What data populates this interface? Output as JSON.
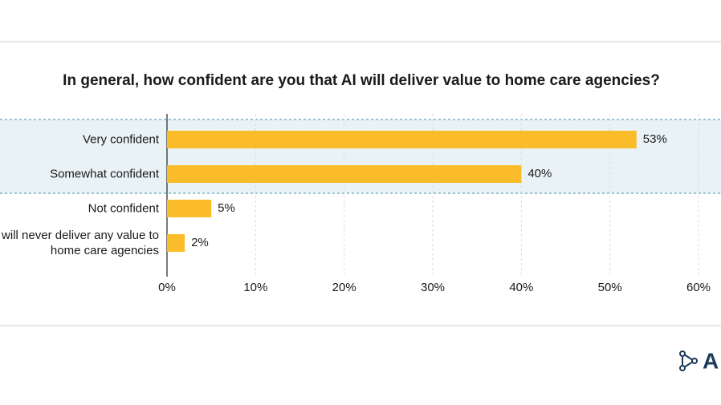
{
  "chart_data": {
    "type": "bar",
    "orientation": "horizontal",
    "title": "In general, how confident are you that AI will deliver value to home care agencies?",
    "categories": [
      "Very confident",
      "Somewhat confident",
      "Not confident",
      "AI will never deliver any value to home care agencies"
    ],
    "values": [
      53,
      40,
      5,
      2
    ],
    "value_labels": [
      "53%",
      "40%",
      "5%",
      "2%"
    ],
    "color": "#fbbc2a",
    "xlim": [
      0,
      60
    ],
    "xticks": [
      {
        "value": 0,
        "label": "0%"
      },
      {
        "value": 10,
        "label": "10%"
      },
      {
        "value": 20,
        "label": "20%"
      },
      {
        "value": 30,
        "label": "30%"
      },
      {
        "value": 40,
        "label": "40%"
      },
      {
        "value": 50,
        "label": "50%"
      },
      {
        "value": 60,
        "label": "60%"
      }
    ],
    "grid": true,
    "logo_text": "A"
  }
}
